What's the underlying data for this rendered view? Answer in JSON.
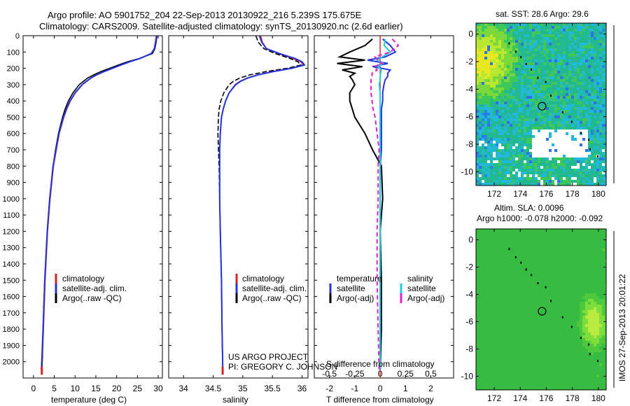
{
  "header": {
    "title_line1": "Argo profile: AO 5901752_204 22-Sep-2013 20130922_216 5.239S 175.675E",
    "title_line2": "Climatology: CARS2009. Satellite-adjusted climatology: synTS_20130920.nc (2.6d earlier)"
  },
  "chart_data": [
    {
      "type": "line",
      "id": "temperature-panel",
      "xlabel": "temperature (deg C)",
      "ylabel": "",
      "xlim": [
        -2.5,
        31
      ],
      "ylim": [
        2100,
        0
      ],
      "xticks": [
        0,
        5,
        10,
        15,
        20,
        25,
        30
      ],
      "yticks": [
        0,
        100,
        200,
        300,
        400,
        500,
        600,
        700,
        800,
        900,
        1000,
        1100,
        1200,
        1300,
        1400,
        1500,
        1600,
        1700,
        1800,
        1900,
        2000
      ],
      "depth": [
        0,
        40,
        80,
        110,
        140,
        160,
        180,
        200,
        220,
        240,
        260,
        280,
        300,
        350,
        400,
        450,
        500,
        600,
        700,
        800,
        1000,
        1200,
        1500,
        1800,
        2000,
        2050
      ],
      "series": [
        {
          "name": "climatology",
          "color": "#dd2222",
          "values": [
            29.5,
            29.3,
            29.0,
            28.3,
            25.5,
            23.0,
            21.0,
            19.0,
            17.0,
            15.2,
            13.9,
            12.8,
            11.8,
            10.1,
            8.9,
            8.0,
            7.3,
            6.2,
            5.5,
            4.8,
            4.0,
            3.4,
            2.8,
            2.4,
            2.1,
            2.0
          ]
        },
        {
          "name": "satellite-adj. clim.",
          "color": "#2233dd",
          "values": [
            29.6,
            29.4,
            29.1,
            28.3,
            25.6,
            23.1,
            21.0,
            19.0,
            17.0,
            15.2,
            13.8,
            12.7,
            11.7,
            10.0,
            8.8,
            7.9,
            7.2,
            6.1,
            5.4,
            4.7,
            3.9,
            3.3,
            2.7,
            2.3,
            2.0,
            1.9
          ]
        },
        {
          "name": "Argo(..raw -QC)",
          "color": "#000000",
          "values": [
            29.7,
            29.5,
            29.2,
            28.6,
            25.4,
            22.6,
            20.4,
            18.3,
            16.2,
            14.5,
            13.0,
            12.0,
            11.0,
            9.5,
            8.4,
            7.6,
            7.0,
            6.0,
            5.3,
            4.7,
            3.9,
            3.3,
            2.7,
            2.3,
            2.1,
            2.0
          ]
        }
      ]
    },
    {
      "type": "line",
      "id": "salinity-panel",
      "xlabel": "salinity",
      "ylabel": "",
      "xlim": [
        33.75,
        36.1
      ],
      "ylim": [
        2100,
        0
      ],
      "xticks": [
        34,
        34.5,
        35,
        35.5,
        36
      ],
      "xtick_labels": [
        "34",
        "34.5",
        "35",
        "35.5",
        "36"
      ],
      "depth": [
        0,
        40,
        80,
        110,
        140,
        160,
        180,
        200,
        220,
        240,
        260,
        280,
        300,
        350,
        400,
        450,
        500,
        600,
        700,
        800,
        1000,
        1200,
        1500,
        1800,
        2000,
        2050
      ],
      "series": [
        {
          "name": "climatology",
          "color": "#dd2222",
          "values": [
            35.3,
            35.33,
            35.4,
            35.6,
            35.85,
            35.98,
            36.02,
            35.8,
            35.5,
            35.25,
            35.07,
            34.95,
            34.87,
            34.77,
            34.71,
            34.67,
            34.64,
            34.62,
            34.61,
            34.61,
            34.61,
            34.62,
            34.64,
            34.65,
            34.66,
            34.66
          ]
        },
        {
          "name": "satellite-adj. clim.",
          "color": "#2233dd",
          "values": [
            35.28,
            35.32,
            35.4,
            35.62,
            35.88,
            36.0,
            36.04,
            35.82,
            35.52,
            35.26,
            35.08,
            34.96,
            34.88,
            34.77,
            34.71,
            34.67,
            34.64,
            34.62,
            34.61,
            34.61,
            34.61,
            34.62,
            34.64,
            34.65,
            34.66,
            34.66
          ]
        },
        {
          "name": "Argo(..raw -QC)",
          "color": "#000000",
          "values": [
            35.22,
            35.26,
            35.36,
            35.55,
            35.8,
            35.93,
            35.98,
            35.75,
            35.4,
            35.12,
            34.95,
            34.84,
            34.77,
            34.68,
            34.63,
            34.6,
            34.59,
            34.58,
            34.59,
            34.6,
            34.61,
            34.62,
            34.64,
            34.65,
            34.66,
            34.66
          ]
        }
      ],
      "annotation_lines": [
        "US ARGO PROJECT",
        "PI: GREGORY C. JOHNSON"
      ]
    },
    {
      "type": "line",
      "id": "difference-panel",
      "xlabel": "T difference from climatology",
      "xlabel_top": "S difference from climatology",
      "xlim": [
        -2.6,
        2.9
      ],
      "ylim": [
        2100,
        0
      ],
      "xticks": [
        -2,
        -1,
        0,
        1,
        2
      ],
      "s_ticks": [
        -0.5,
        -0.25,
        0,
        0.25,
        0.5
      ],
      "s_scale_per_T": 4,
      "depth": [
        20,
        60,
        100,
        130,
        150,
        170,
        190,
        210,
        230,
        250,
        270,
        300,
        350,
        400,
        450,
        500,
        600,
        700,
        800,
        1000,
        1200,
        1500,
        1800,
        2050
      ],
      "legend_headers": [
        "temperature",
        "salinity"
      ],
      "series": [
        {
          "name": "satellite",
          "group": "temperature",
          "color": "#2233dd",
          "dash": "",
          "values": [
            0.1,
            0.4,
            0.6,
            0.2,
            -0.5,
            0.3,
            -0.3,
            0.4,
            0.3,
            0.3,
            0.2,
            0.15,
            0.1,
            0.1,
            0.05,
            0.05,
            0.05,
            0.05,
            0.0,
            0.0,
            0.0,
            0.0,
            0.0,
            0.0
          ]
        },
        {
          "name": "Argo(-adj)",
          "group": "temperature",
          "color": "#000000",
          "dash": "",
          "values": [
            -0.3,
            -0.6,
            -1.2,
            -1.6,
            -0.6,
            -1.7,
            -0.7,
            -1.5,
            -1.0,
            -1.2,
            -1.1,
            -1.0,
            -1.2,
            -1.2,
            -1.1,
            -1.0,
            -0.6,
            -0.3,
            0.05,
            0.1,
            0.0,
            0.05,
            0.05,
            0.0
          ]
        },
        {
          "name": "satellite",
          "group": "salinity",
          "color": "#22ccdd",
          "dash": "",
          "values": [
            0.05,
            0.04,
            0.1,
            0.02,
            -0.03,
            0.03,
            -0.02,
            0.01,
            0.005,
            0.0,
            0.0,
            -0.01,
            0.0,
            0.0,
            0.0,
            0.0,
            0.0,
            0.0,
            0.0,
            0.0,
            0.0,
            0.0,
            0.0,
            0.0
          ]
        },
        {
          "name": "Argo(-adj)",
          "group": "salinity",
          "color": "#dd22cc",
          "dash": "6,4",
          "values": [
            0.12,
            0.18,
            0.1,
            -0.05,
            -0.02,
            0.02,
            -0.06,
            -0.03,
            -0.08,
            -0.08,
            -0.09,
            -0.09,
            -0.09,
            -0.08,
            -0.07,
            -0.05,
            -0.03,
            -0.01,
            -0.02,
            -0.02,
            -0.03,
            -0.03,
            -0.02,
            -0.01
          ]
        }
      ],
      "climatology_color": "#dd2222"
    }
  ],
  "sst_map": {
    "title": "sat. SST: 28.6  Argo: 29.6",
    "xticks": [
      172,
      174,
      176,
      178,
      180
    ],
    "yticks": [
      0,
      -2,
      -4,
      -6,
      -8,
      -10
    ],
    "lon_range": [
      170.6,
      180.6
    ],
    "lat_range": [
      0.8,
      -11.0
    ],
    "profile_lon": 175.675,
    "profile_lat": -5.239
  },
  "sla_map": {
    "title_line1": "Altim. SLA: 0.0096",
    "title_line2": "Argo h1000: -0.078  h2000: -0.092",
    "xticks": [
      172,
      174,
      176,
      178,
      180
    ],
    "yticks": [
      0,
      -2,
      -4,
      -6,
      -8,
      -10
    ],
    "lon_range": [
      170.6,
      180.6
    ],
    "lat_range": [
      0.8,
      -11.0
    ],
    "profile_lon": 175.675,
    "profile_lat": -5.239
  },
  "side_stamp": "IMOS 27-Sep-2013 20:01:22"
}
